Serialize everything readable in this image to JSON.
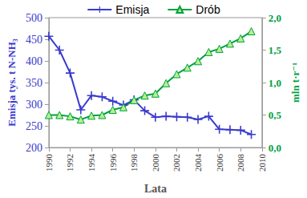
{
  "chart_data": {
    "type": "line",
    "xlabel": "Lata",
    "ylabel": "Emisja tys. t N-NH₃",
    "y2label": "mln t·r⁻¹",
    "x": [
      1990,
      1991,
      1992,
      1993,
      1994,
      1995,
      1996,
      1997,
      1998,
      1999,
      2000,
      2001,
      2002,
      2003,
      2004,
      2005,
      2006,
      2007,
      2008,
      2009
    ],
    "xlim": [
      1990,
      2010
    ],
    "xticks": [
      1990,
      1992,
      1994,
      1996,
      1998,
      2000,
      2002,
      2004,
      2006,
      2008,
      2010
    ],
    "ylim": [
      200,
      500
    ],
    "yticks": [
      200,
      250,
      300,
      350,
      400,
      450,
      500
    ],
    "y2lim": [
      0,
      2
    ],
    "y2ticks": [
      {
        "value": 0,
        "label": "0,0"
      },
      {
        "value": 0.5,
        "label": "0,5"
      },
      {
        "value": 1,
        "label": "1,0"
      },
      {
        "value": 1.5,
        "label": "1,5"
      },
      {
        "value": 2,
        "label": "2,0"
      }
    ],
    "series": [
      {
        "name": "Emisja",
        "color": "#3a3acc",
        "marker": "plus",
        "axis": "y",
        "values": [
          457,
          425,
          372,
          287,
          320,
          317,
          307,
          298,
          310,
          285,
          270,
          272,
          271,
          270,
          265,
          272,
          242,
          241,
          240,
          230
        ]
      },
      {
        "name": "Drób",
        "color": "#00a040",
        "marker": "triangle",
        "axis": "y2",
        "values": [
          0.5,
          0.5,
          0.48,
          0.43,
          0.49,
          0.5,
          0.58,
          0.62,
          0.73,
          0.8,
          0.83,
          0.99,
          1.13,
          1.23,
          1.33,
          1.47,
          1.52,
          1.6,
          1.68,
          1.79
        ]
      }
    ],
    "legend": "top",
    "grid": false
  }
}
